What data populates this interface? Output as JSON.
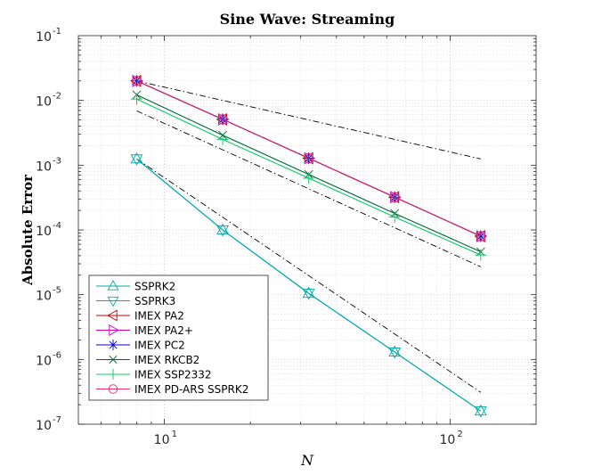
{
  "chart_data": {
    "type": "line",
    "title": "Sine Wave: Streaming",
    "xlabel": "N",
    "ylabel": "Absolute Error",
    "xscale": "log",
    "yscale": "log",
    "xlim": [
      5,
      200
    ],
    "ylim": [
      1e-07,
      0.1
    ],
    "grid": true,
    "legend_position": "bottom-left",
    "x_ticks": [
      {
        "base": "10",
        "exp": "1",
        "value": 10
      },
      {
        "base": "10",
        "exp": "2",
        "value": 100
      }
    ],
    "y_ticks": [
      {
        "base": "10",
        "exp": "-7",
        "value": 1e-07
      },
      {
        "base": "10",
        "exp": "-6",
        "value": 1e-06
      },
      {
        "base": "10",
        "exp": "-5",
        "value": 1e-05
      },
      {
        "base": "10",
        "exp": "-4",
        "value": 0.0001
      },
      {
        "base": "10",
        "exp": "-3",
        "value": 0.001
      },
      {
        "base": "10",
        "exp": "-2",
        "value": 0.01
      },
      {
        "base": "10",
        "exp": "-1",
        "value": 0.1
      }
    ],
    "x": [
      8,
      16,
      32,
      64,
      128
    ],
    "series": [
      {
        "name": "SSPRK2",
        "color": "#00aaaa",
        "marker": "triangle-up",
        "values": [
          0.00125,
          0.0001,
          1.05e-05,
          1.3e-06,
          1.6e-07
        ]
      },
      {
        "name": "SSPRK3",
        "color": "#00aaaa",
        "marker": "triangle-down",
        "values": [
          0.00125,
          0.0001,
          1.05e-05,
          1.3e-06,
          1.6e-07
        ]
      },
      {
        "name": "IMEX PA2",
        "color": "#cc0000",
        "marker": "triangle-left",
        "values": [
          0.02,
          0.0051,
          0.00128,
          0.00032,
          8e-05
        ]
      },
      {
        "name": "IMEX PA2+",
        "color": "#cc00cc",
        "marker": "triangle-right",
        "values": [
          0.02,
          0.0051,
          0.00128,
          0.00032,
          8e-05
        ]
      },
      {
        "name": "IMEX PC2",
        "color": "#0000cc",
        "marker": "asterisk",
        "values": [
          0.02,
          0.0051,
          0.00128,
          0.00032,
          8e-05
        ]
      },
      {
        "name": "IMEX RKCB2",
        "color": "#006633",
        "marker": "x",
        "values": [
          0.0122,
          0.0029,
          0.00072,
          0.00018,
          4.6e-05
        ]
      },
      {
        "name": "IMEX SSP2332",
        "color": "#00cc66",
        "marker": "plus",
        "values": [
          0.0105,
          0.0025,
          0.00063,
          0.000158,
          4.1e-05
        ]
      },
      {
        "name": "IMEX PD-ARS SSPRK2",
        "color": "#e0306a",
        "marker": "circle",
        "values": [
          0.02,
          0.0051,
          0.00128,
          0.00032,
          8e-05
        ]
      }
    ],
    "reference_lines": [
      {
        "name": "order-1 reference",
        "x": [
          8,
          128
        ],
        "y": [
          0.02,
          0.00125
        ]
      },
      {
        "name": "order-2 reference",
        "x": [
          8,
          128
        ],
        "y": [
          0.0069,
          2.7e-05
        ]
      },
      {
        "name": "order-3 reference",
        "x": [
          8,
          128
        ],
        "y": [
          0.00125,
          3.1e-07
        ]
      }
    ]
  }
}
